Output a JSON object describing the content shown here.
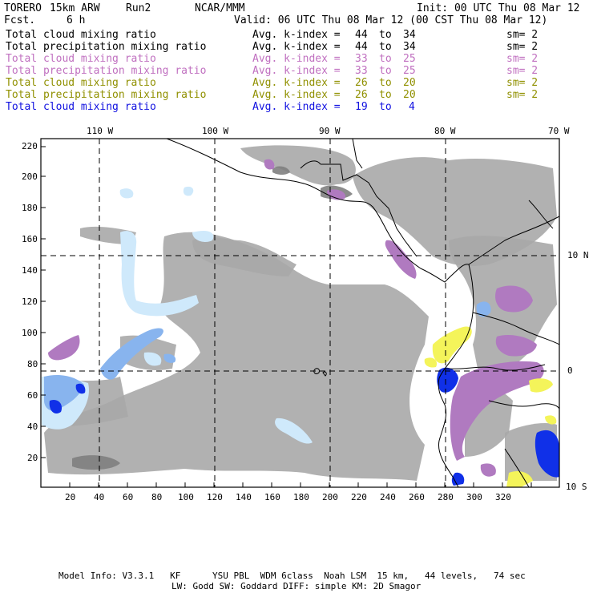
{
  "header": {
    "model": "TORERO",
    "resolution": "15km ARW",
    "run": "Run2",
    "org": "NCAR/MMM",
    "init": "Init: 00 UTC Thu 08 Mar 12",
    "fcst_label": "Fcst.",
    "fcst_value": "6 h",
    "valid": "Valid: 06 UTC Thu 08 Mar 12 (00 CST Thu 08 Mar 12)"
  },
  "legend": [
    {
      "name": "Total cloud mixing ratio",
      "kindex": "Avg. k-index =",
      "from": "44",
      "to_word": "to",
      "to": "34",
      "sm": "sm= 2",
      "color": "#000000"
    },
    {
      "name": "Total precipitation mixing ratio",
      "kindex": "Avg. k-index =",
      "from": "44",
      "to_word": "to",
      "to": "34",
      "sm": "sm= 2",
      "color": "#000000"
    },
    {
      "name": "Total cloud mixing ratio",
      "kindex": "Avg. k-index =",
      "from": "33",
      "to_word": "to",
      "to": "25",
      "sm": "sm= 2",
      "color": "#c070c0"
    },
    {
      "name": "Total precipitation mixing ratio",
      "kindex": "Avg. k-index =",
      "from": "33",
      "to_word": "to",
      "to": "25",
      "sm": "sm= 2",
      "color": "#c070c0"
    },
    {
      "name": "Total cloud mixing ratio",
      "kindex": "Avg. k-index =",
      "from": "26",
      "to_word": "to",
      "to": "20",
      "sm": "sm= 2",
      "color": "#909000"
    },
    {
      "name": "Total precipitation mixing ratio",
      "kindex": "Avg. k-index =",
      "from": "26",
      "to_word": "to",
      "to": "20",
      "sm": "sm= 2",
      "color": "#909000"
    },
    {
      "name": "Total cloud mixing ratio",
      "kindex": "Avg. k-index =",
      "from": "19",
      "to_word": "to",
      "to": "4",
      "sm": "",
      "color": "#1010e0"
    }
  ],
  "map": {
    "lon_labels": [
      "110 W",
      "100 W",
      "90 W",
      "80 W",
      "70 W"
    ],
    "lat_labels": [
      "10 N",
      "0",
      "10 S"
    ],
    "x_ticks": [
      "20",
      "40",
      "60",
      "80",
      "100",
      "120",
      "140",
      "160",
      "180",
      "200",
      "220",
      "240",
      "260",
      "280",
      "300",
      "320"
    ],
    "y_ticks": [
      "220",
      "200",
      "180",
      "160",
      "140",
      "120",
      "100",
      "80",
      "60",
      "40",
      "20"
    ],
    "colors": {
      "gray": "#a8a8a8",
      "dark_gray": "#808080",
      "light_blue": "#cfe9fb",
      "mid_blue": "#88b4ee",
      "blue": "#1030e8",
      "magenta": "#b07ac0",
      "yellow": "#f4f45a",
      "coast": "#000000"
    }
  },
  "footer": {
    "line1": "Model Info: V3.3.1   KF      YSU PBL  WDM 6class  Noah LSM  15 km,   44 levels,   74 sec",
    "line2": "LW: Godd SW: Goddard DIFF: simple KM: 2D Smagor"
  }
}
